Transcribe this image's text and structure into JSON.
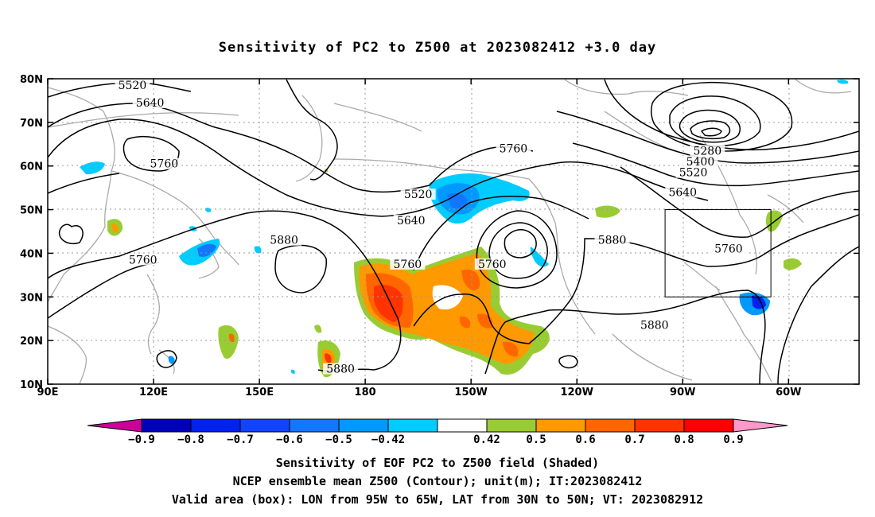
{
  "title": "Sensitivity of PC2 to Z500 at 2023082412 +3.0 day",
  "map": {
    "lon_ticks": [
      {
        "label": "90E",
        "lon": 90
      },
      {
        "label": "120E",
        "lon": 120
      },
      {
        "label": "150E",
        "lon": 150
      },
      {
        "label": "180",
        "lon": 180
      },
      {
        "label": "150W",
        "lon": 210
      },
      {
        "label": "120W",
        "lon": 240
      },
      {
        "label": "90W",
        "lon": 270
      },
      {
        "label": "60W",
        "lon": 300
      }
    ],
    "lat_ticks": [
      {
        "label": "10N",
        "lat": 10
      },
      {
        "label": "20N",
        "lat": 20
      },
      {
        "label": "30N",
        "lat": 30
      },
      {
        "label": "40N",
        "lat": 40
      },
      {
        "label": "50N",
        "lat": 50
      },
      {
        "label": "60N",
        "lat": 60
      },
      {
        "label": "70N",
        "lat": 70
      },
      {
        "label": "80N",
        "lat": 80
      }
    ],
    "lon_range": [
      90,
      320
    ],
    "lat_range": [
      10,
      80
    ],
    "valid_box": {
      "lon_min": 265,
      "lon_max": 295,
      "lat_min": 30,
      "lat_max": 50
    },
    "contour_labels": [
      {
        "text": "5520",
        "lon": 114,
        "lat": 78
      },
      {
        "text": "5640",
        "lon": 119,
        "lat": 74
      },
      {
        "text": "5760",
        "lon": 123,
        "lat": 60
      },
      {
        "text": "5760",
        "lon": 117,
        "lat": 38
      },
      {
        "text": "5880",
        "lon": 157,
        "lat": 42.5
      },
      {
        "text": "5880",
        "lon": 173,
        "lat": 13
      },
      {
        "text": "5520",
        "lon": 195,
        "lat": 53
      },
      {
        "text": "5640",
        "lon": 193,
        "lat": 47
      },
      {
        "text": "5760",
        "lon": 192,
        "lat": 37
      },
      {
        "text": "5760",
        "lon": 222,
        "lat": 63.5
      },
      {
        "text": "5760",
        "lon": 216,
        "lat": 37
      },
      {
        "text": "5880",
        "lon": 250,
        "lat": 42.5
      },
      {
        "text": "5880",
        "lon": 262,
        "lat": 23
      },
      {
        "text": "5760",
        "lon": 283,
        "lat": 40.5
      },
      {
        "text": "5640",
        "lon": 270,
        "lat": 53.5
      },
      {
        "text": "5520",
        "lon": 273,
        "lat": 58
      },
      {
        "text": "5400",
        "lon": 275,
        "lat": 60.5
      },
      {
        "text": "5280",
        "lon": 277,
        "lat": 63
      }
    ]
  },
  "colorbar": {
    "colors": [
      "#cc0099",
      "#0000bb",
      "#0022ee",
      "#1144ff",
      "#1177ff",
      "#0099ff",
      "#00ccff",
      "#ffffff",
      "#99cc33",
      "#ff9900",
      "#ff6600",
      "#ff3300",
      "#ff0000",
      "#ff99cc"
    ],
    "labels": [
      "−0.9",
      "−0.8",
      "−0.7",
      "−0.6",
      "−0.5",
      "−0.42",
      "0.42",
      "0.5",
      "0.6",
      "0.7",
      "0.8",
      "0.9"
    ]
  },
  "captions": {
    "line1": "Sensitivity of EOF PC2 to Z500 field (Shaded)",
    "line2": "NCEP ensemble mean Z500 (Contour); unit(m); IT:2023082412",
    "line3": "Valid area (box): LON from 95W to 65W, LAT from 30N to 50N; VT: 2023082912"
  }
}
